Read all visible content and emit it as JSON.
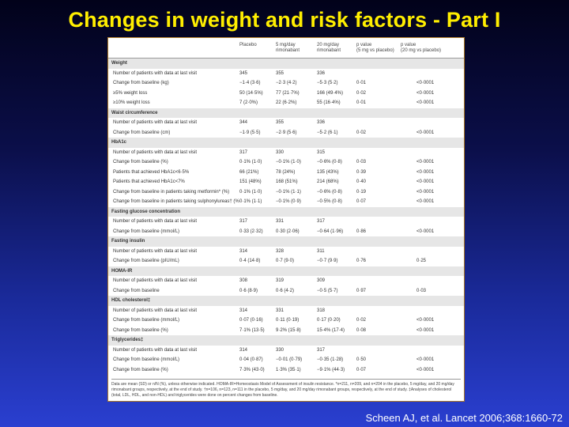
{
  "title": "Changes in weight and risk factors - Part I",
  "citation": "Scheen AJ, et al. Lancet 2006;368:1660-72",
  "table": {
    "columns": [
      {
        "lines": [
          "Placebo"
        ]
      },
      {
        "lines": [
          "5 mg/day",
          "rimonabant"
        ]
      },
      {
        "lines": [
          "20 mg/day",
          "rimonabant"
        ]
      },
      {
        "lines": [
          "p value",
          "(5 mg vs placebo)"
        ]
      },
      {
        "lines": [
          "p value",
          "(20 mg vs placebo)"
        ]
      }
    ],
    "sections": [
      {
        "title": "Weight",
        "rows": [
          [
            "Number of patients with data at last visit",
            "345",
            "355",
            "336",
            "",
            ""
          ],
          [
            "Change from baseline (kg)",
            "−1·4 (3·6)",
            "−2·3 (4·2)",
            "−5·3 (5·2)",
            "0·01",
            "<0·0001"
          ],
          [
            "≥5% weight loss",
            "50 (14·5%)",
            "77 (21·7%)",
            "166 (49·4%)",
            "0·02",
            "<0·0001"
          ],
          [
            "≥10% weight loss",
            "7 (2·0%)",
            "22 (6·2%)",
            "55 (16·4%)",
            "0·01",
            "<0·0001"
          ]
        ]
      },
      {
        "title": "Waist circumference",
        "rows": [
          [
            "Number of patients with data at last visit",
            "344",
            "355",
            "336",
            "",
            ""
          ],
          [
            "Change from baseline (cm)",
            "−1·9 (5·5)",
            "−2·9 (5·6)",
            "−5·2 (6·1)",
            "0·02",
            "<0·0001"
          ]
        ]
      },
      {
        "title": "HbA1c",
        "rows": [
          [
            "Number of patients with data at last visit",
            "317",
            "330",
            "315",
            "",
            ""
          ],
          [
            "Change from baseline (%)",
            "0·1% (1·0)",
            "−0·1% (1·0)",
            "−0·6% (0·8)",
            "0·03",
            "<0·0001"
          ],
          [
            "Patients that achieved HbA1c<6·5%",
            "66 (21%)",
            "78 (24%)",
            "135 (43%)",
            "0·39",
            "<0·0001"
          ],
          [
            "Patients that achieved HbA1c<7%",
            "151 (48%)",
            "168 (51%)",
            "214 (68%)",
            "0·40",
            "<0·0001"
          ],
          [
            "Change from baseline in patients taking metformin* (%)",
            "0·1% (1·0)",
            "−0·1% (1·1)",
            "−0·6% (0·8)",
            "0·19",
            "<0·0001"
          ],
          [
            "Change from baseline in patients taking sulphonylureas† (%)",
            "0·1% (1·1)",
            "−0·1% (0·9)",
            "−0·5% (0·8)",
            "0·07",
            "<0·0001"
          ]
        ]
      },
      {
        "title": "Fasting glucose concentration",
        "rows": [
          [
            "Number of patients with data at last visit",
            "317",
            "331",
            "317",
            "",
            ""
          ],
          [
            "Change from baseline (mmol/L)",
            "0·33 (2·32)",
            "0·30 (2·06)",
            "−0·64 (1·96)",
            "0·86",
            "<0·0001"
          ]
        ]
      },
      {
        "title": "Fasting insulin",
        "rows": [
          [
            "Number of patients with data at last visit",
            "314",
            "328",
            "311",
            "",
            ""
          ],
          [
            "Change from baseline (pIU/mL)",
            "0·4 (14·8)",
            "0·7 (9·0)",
            "−0·7 (9·9)",
            "0·76",
            "0·25"
          ]
        ]
      },
      {
        "title": "HOMA-IR",
        "rows": [
          [
            "Number of patients with data at last visit",
            "308",
            "319",
            "309",
            "",
            ""
          ],
          [
            "Change from baseline",
            "0·6 (8·9)",
            "0·6 (4·2)",
            "−0·5 (5·7)",
            "0·97",
            "0·03"
          ]
        ]
      },
      {
        "title": "HDL cholesterol‡",
        "rows": [
          [
            "Number of patients with data at last visit",
            "314",
            "331",
            "318",
            "",
            ""
          ],
          [
            "Change from baseline (mmol/L)",
            "0·07 (0·16)",
            "0·11 (0·19)",
            "0·17 (0·20)",
            "0·02",
            "<0·0001"
          ],
          [
            "Change from baseline (%)",
            "7·1% (13·5)",
            "9·2% (15·8)",
            "15·4% (17·4)",
            "0·08",
            "<0·0001"
          ]
        ]
      },
      {
        "title": "Triglycerides‡",
        "rows": [
          [
            "Number of patients with data at last visit",
            "314",
            "330",
            "317",
            "",
            ""
          ],
          [
            "Change from baseline (mmol/L)",
            "0·04 (0·87)",
            "−0·01 (0·79)",
            "−0·35 (1·28)",
            "0·50",
            "<0·0001"
          ],
          [
            "Change from baseline (%)",
            "7·3% (43·0)",
            "1·3% (35·1)",
            "−9·1% (44·3)",
            "0·07",
            "<0·0001"
          ]
        ]
      }
    ],
    "footnote": "Data are mean (SD) or n/N (%), unless otherwise indicated. HOMA-IR=Homeostasis Model of Assessment of insulin resistance. *n=211, n=209, and n=204 in the placebo, 5 mg/day, and 20 mg/day rimonabant groups, respectively, at the end of study. †n=106, n=123, n=111 in the placebo, 5 mg/day, and 20 mg/day rimonabant groups, respectively, at the end of study. ‡Analyses of cholesterol (total, LDL, HDL, and non-HDL) and triglycerides were done on percent changes from baseline."
  }
}
